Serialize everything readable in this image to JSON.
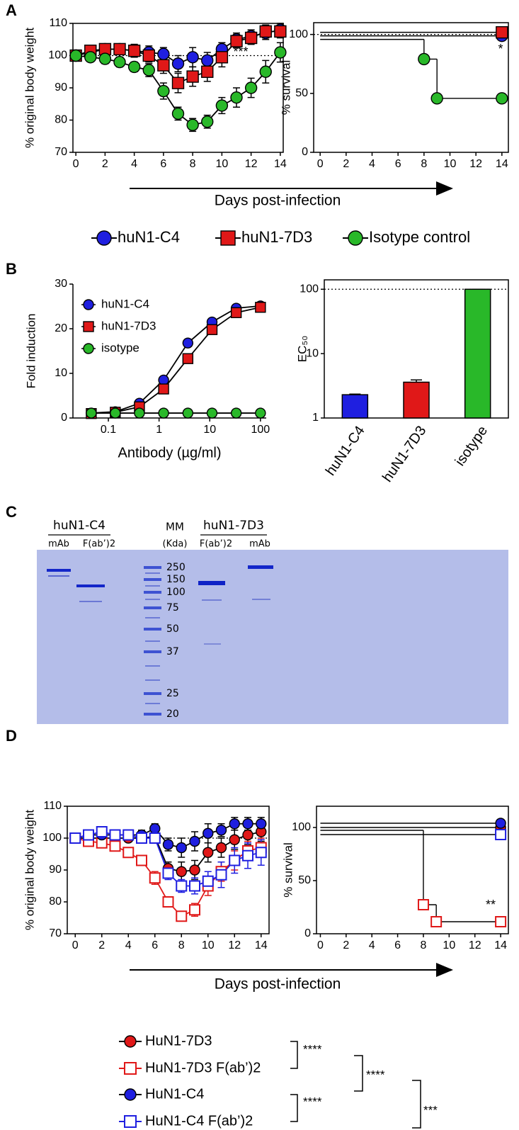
{
  "figure": {
    "panel_labels": [
      "A",
      "B",
      "C",
      "D"
    ],
    "a_xlabel": "Days post-infection",
    "d_xlabel": "Days post-infection",
    "d_stats": [
      "****",
      "****",
      "****",
      "***"
    ]
  },
  "gel": {
    "groups": [
      {
        "label": "huN1-C4",
        "lanes": [
          "mAb",
          "F(ab’)2"
        ]
      },
      {
        "label": "huN1-7D3",
        "lanes": [
          "F(ab’)2",
          "mAb"
        ]
      }
    ],
    "marker_title": "MM",
    "marker_unit": "(Kda)",
    "marker_sizes": [
      250,
      150,
      100,
      75,
      50,
      37,
      25,
      20
    ]
  },
  "chart_data": [
    {
      "type": "line",
      "ylabel": "% original body weight",
      "x": [
        0,
        1,
        2,
        3,
        4,
        5,
        6,
        7,
        8,
        9,
        10,
        11,
        12,
        13,
        14
      ],
      "xlim": [
        -0.2,
        14.2
      ],
      "xticks": [
        0,
        2,
        4,
        6,
        8,
        10,
        12,
        14
      ],
      "ylim": [
        70,
        110
      ],
      "yticks": [
        70,
        80,
        90,
        100,
        110
      ],
      "hline": 100,
      "annotation": "***",
      "series": [
        {
          "name": "huN1-C4",
          "color": "#1f1fe0",
          "marker": "circle",
          "filled": true,
          "values": [
            100,
            101,
            102,
            102,
            101.5,
            101,
            100.5,
            97.5,
            99.5,
            98.5,
            102,
            105,
            106,
            107,
            108
          ],
          "errors": [
            1,
            1,
            1.5,
            1.5,
            2,
            2,
            2,
            2.5,
            3,
            2.5,
            2,
            2,
            2,
            2,
            2
          ]
        },
        {
          "name": "huN1-7D3",
          "color": "#e01818",
          "marker": "square",
          "filled": true,
          "values": [
            100,
            101.5,
            102,
            102,
            101.5,
            100,
            97,
            91.5,
            93.5,
            95,
            99.5,
            104.5,
            105.5,
            107.5,
            107.5
          ],
          "errors": [
            1,
            1,
            1.5,
            1.5,
            2,
            2,
            2.5,
            3,
            3,
            3,
            3,
            2,
            2,
            2,
            2
          ]
        },
        {
          "name": "Isotype control",
          "color": "#29b829",
          "marker": "circle",
          "filled": true,
          "values": [
            100,
            99.5,
            99,
            98,
            96.5,
            95.5,
            89,
            82,
            78.5,
            79.5,
            84.5,
            87,
            90,
            95,
            101
          ],
          "errors": [
            1,
            1,
            1.5,
            1.5,
            1.5,
            2,
            2.5,
            2,
            2,
            2,
            2.5,
            3,
            3,
            3.5,
            3
          ]
        }
      ]
    },
    {
      "type": "step",
      "ylabel": "% survival",
      "xlim": [
        -0.5,
        14.5
      ],
      "xticks": [
        0,
        2,
        4,
        6,
        8,
        10,
        12,
        14
      ],
      "ylim": [
        0,
        110
      ],
      "yticks": [
        0,
        50,
        100
      ],
      "hline": 100,
      "annotation": "*",
      "series": [
        {
          "name": "huN1-C4",
          "color": "#1f1fe0",
          "marker": "circle",
          "filled": true,
          "x": [
            0,
            14
          ],
          "values": [
            100,
            100
          ]
        },
        {
          "name": "huN1-7D3",
          "color": "#e01818",
          "marker": "square",
          "filled": true,
          "x": [
            0,
            14
          ],
          "values": [
            100,
            100
          ]
        },
        {
          "name": "Isotype control",
          "color": "#29b829",
          "marker": "circle",
          "filled": true,
          "x": [
            0,
            8,
            9,
            14
          ],
          "values": [
            100,
            83.3,
            50,
            50
          ]
        }
      ]
    },
    {
      "type": "line",
      "xlabel": "Antibody (µg/ml)",
      "ylabel": "Fold induction",
      "xlog": true,
      "legend": "upper left",
      "x": [
        0.046,
        0.137,
        0.41,
        1.23,
        3.7,
        11.1,
        33.3,
        100
      ],
      "xlim": [
        0.02,
        130
      ],
      "xticks": [
        0.1,
        1,
        10,
        100
      ],
      "ylim": [
        0,
        30
      ],
      "yticks": [
        0,
        10,
        20,
        30
      ],
      "series": [
        {
          "name": "huN1-C4",
          "color": "#1f1fe0",
          "marker": "circle",
          "filled": true,
          "values": [
            1.1,
            1.4,
            3.3,
            8.5,
            16.8,
            21.5,
            24.6,
            25.1
          ]
        },
        {
          "name": "huN1-7D3",
          "color": "#e01818",
          "marker": "square",
          "filled": true,
          "values": [
            1.0,
            1.3,
            2.5,
            6.5,
            13.3,
            19.8,
            23.6,
            24.8
          ]
        },
        {
          "name": "isotype",
          "color": "#29b829",
          "marker": "circle",
          "filled": true,
          "values": [
            1.1,
            1.1,
            1.1,
            1.1,
            1.1,
            1.1,
            1.1,
            1.1
          ]
        }
      ]
    },
    {
      "type": "bar",
      "ylabel": "EC₅₀",
      "ylog": true,
      "ylim": [
        1,
        140
      ],
      "yticks": [
        1,
        10,
        100
      ],
      "hline": 100,
      "categories": [
        "huN1-C4",
        "huN1-7D3",
        "isotype"
      ],
      "values": [
        2.3,
        3.6,
        100
      ],
      "errors": [
        0.05,
        0.3,
        0
      ],
      "colors": [
        "#1f1fe0",
        "#e01818",
        "#29b829"
      ]
    },
    {
      "type": "line",
      "ylabel": "% original body weight",
      "x": [
        0,
        1,
        2,
        3,
        4,
        5,
        6,
        7,
        8,
        9,
        10,
        11,
        12,
        13,
        14
      ],
      "xlim": [
        -0.6,
        14.6
      ],
      "xticks": [
        0,
        2,
        4,
        6,
        8,
        10,
        12,
        14
      ],
      "ylim": [
        70,
        110
      ],
      "yticks": [
        70,
        80,
        90,
        100,
        110
      ],
      "hline": 100,
      "series": [
        {
          "name": "HuN1-7D3",
          "color": "#e01818",
          "marker": "circle",
          "filled": true,
          "values": [
            100,
            100,
            100,
            100,
            100,
            100,
            100.5,
            90.5,
            89.5,
            90,
            95.5,
            97,
            99.5,
            101,
            102
          ],
          "errors": [
            1,
            1,
            1,
            1,
            1,
            1.5,
            1.5,
            2,
            3,
            3,
            3,
            3,
            3,
            3,
            3
          ]
        },
        {
          "name": "HuN1-7D3 F(ab’)2",
          "color": "#e01818",
          "marker": "square",
          "filled": false,
          "values": [
            100,
            99,
            98.5,
            97.5,
            95.5,
            93,
            87.5,
            80,
            75.5,
            77.5,
            85,
            89.5,
            93,
            96,
            97
          ],
          "errors": [
            1,
            1,
            1,
            1,
            1.5,
            1.5,
            2,
            1.5,
            1.5,
            2,
            3,
            3,
            3,
            3,
            3
          ]
        },
        {
          "name": "HuN1-C4",
          "color": "#1f1fe0",
          "marker": "circle",
          "filled": true,
          "values": [
            100,
            101,
            101,
            101,
            101,
            101,
            103,
            98,
            97,
            99,
            101.5,
            102.5,
            104.5,
            104.5,
            104.5
          ],
          "errors": [
            1,
            1,
            1,
            1,
            1,
            1.5,
            1.5,
            2,
            3,
            3,
            3,
            2,
            2,
            2,
            2
          ]
        },
        {
          "name": "HuN1-C4 F(ab’)2",
          "color": "#1f1fe0",
          "marker": "square",
          "filled": false,
          "values": [
            100,
            101,
            102,
            101,
            101,
            100,
            100,
            89,
            85,
            85,
            86.5,
            88.5,
            93,
            94.5,
            95.5
          ],
          "errors": [
            1,
            1,
            1,
            1,
            1,
            1.5,
            1.5,
            2,
            2,
            2.5,
            3,
            4,
            4,
            4,
            4
          ]
        }
      ]
    },
    {
      "type": "step",
      "ylabel": "% survival",
      "xlim": [
        -0.3,
        14.6
      ],
      "xticks": [
        0,
        2,
        4,
        6,
        8,
        10,
        12,
        14
      ],
      "ylim": [
        0,
        120
      ],
      "yticks": [
        0,
        50,
        100
      ],
      "annotation": "**",
      "series": [
        {
          "name": "HuN1-7D3",
          "color": "#e01818",
          "marker": "circle",
          "filled": true,
          "x": [
            0,
            14
          ],
          "values": [
            100,
            100
          ]
        },
        {
          "name": "HuN1-7D3 F(ab’)2",
          "color": "#e01818",
          "marker": "square",
          "filled": false,
          "x": [
            0,
            8,
            9,
            14
          ],
          "values": [
            100,
            30,
            14,
            14
          ]
        },
        {
          "name": "HuN1-C4",
          "color": "#1f1fe0",
          "marker": "circle",
          "filled": true,
          "x": [
            0,
            14
          ],
          "values": [
            100,
            100
          ]
        },
        {
          "name": "HuN1-C4 F(ab’)2",
          "color": "#1f1fe0",
          "marker": "square",
          "filled": false,
          "x": [
            0,
            14
          ],
          "values": [
            100,
            100
          ]
        }
      ]
    }
  ]
}
